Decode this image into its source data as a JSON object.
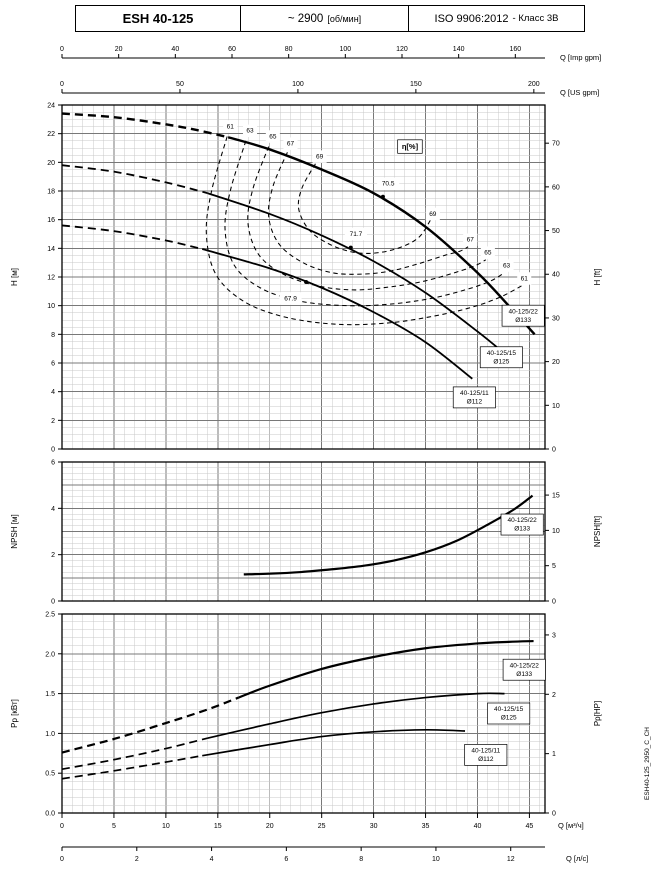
{
  "header": {
    "model": "ESH 40-125",
    "speed_value": "~ 2900",
    "speed_unit": "[об/мин]",
    "standard_value": "ISO 9906:2012",
    "standard_note": "- Класс 3В"
  },
  "side_code": "ESH40-125_2950_C_CH",
  "flow_axes": {
    "qmax_m3h": 46.5,
    "top": [
      {
        "label": "Q [Imp gpm]",
        "factor": 0.272766,
        "ticks": [
          0,
          20,
          40,
          60,
          80,
          100,
          120,
          140,
          160
        ]
      },
      {
        "label": "Q [US gpm]",
        "factor": 0.227125,
        "ticks": [
          0,
          50,
          100,
          150,
          200
        ]
      }
    ],
    "bottom": [
      {
        "label": "Q [м³/ч]",
        "factor": 1,
        "ticks": [
          0,
          5,
          10,
          15,
          20,
          25,
          30,
          35,
          40,
          45
        ]
      },
      {
        "label": "Q [л/с]",
        "factor": 3.6,
        "ticks": [
          0,
          2,
          4,
          6,
          8,
          10,
          12
        ]
      }
    ]
  },
  "chart_data": [
    {
      "id": "head",
      "type": "line",
      "ylabel_left": "H [м]",
      "ylabel_right": "H [ft]",
      "ylim": [
        0,
        24
      ],
      "grid": {
        "major": 2,
        "minor": 0.5
      },
      "yticks_left": [
        0,
        2,
        4,
        6,
        8,
        10,
        12,
        14,
        16,
        18,
        20,
        22,
        24
      ],
      "yticks_right": {
        "values": [
          0,
          10,
          20,
          30,
          40,
          50,
          60,
          70
        ],
        "factor": 0.3048
      },
      "series": [
        {
          "name": "40-125/22 Ø133",
          "width": 2.4,
          "dash_until": 16,
          "points": [
            [
              0,
              23.4
            ],
            [
              5,
              23.15
            ],
            [
              10,
              22.65
            ],
            [
              13,
              22.25
            ],
            [
              16,
              21.75
            ],
            [
              20,
              20.9
            ],
            [
              25,
              19.5
            ],
            [
              30,
              17.85
            ],
            [
              35,
              15.5
            ],
            [
              40,
              12.3
            ],
            [
              43,
              10.0
            ],
            [
              45.5,
              8.0
            ]
          ]
        },
        {
          "name": "40-125/15 Ø125",
          "width": 1.8,
          "dash_until": 14,
          "points": [
            [
              0,
              19.8
            ],
            [
              5,
              19.35
            ],
            [
              10,
              18.6
            ],
            [
              14,
              17.85
            ],
            [
              20,
              16.4
            ],
            [
              25,
              14.9
            ],
            [
              30,
              13.1
            ],
            [
              35,
              10.9
            ],
            [
              40,
              8.2
            ],
            [
              43.2,
              6.3
            ]
          ]
        },
        {
          "name": "40-125/11 Ø112",
          "width": 1.8,
          "dash_until": 13.5,
          "points": [
            [
              0,
              15.6
            ],
            [
              5,
              15.2
            ],
            [
              10,
              14.55
            ],
            [
              13.5,
              13.95
            ],
            [
              20,
              12.6
            ],
            [
              25,
              11.25
            ],
            [
              30,
              9.55
            ],
            [
              35,
              7.45
            ],
            [
              39.5,
              4.9
            ]
          ]
        }
      ],
      "contours": [
        {
          "value": "61",
          "left_label": [
            16.2,
            22.5
          ],
          "right_label": [
            44.5,
            11.9
          ],
          "points": [
            [
              15.9,
              21.8
            ],
            [
              14.4,
              18.0
            ],
            [
              13.9,
              15.0
            ],
            [
              14.8,
              12.2
            ],
            [
              17.5,
              10.3
            ],
            [
              21.5,
              9.2
            ],
            [
              26.5,
              8.7
            ],
            [
              31.5,
              8.8
            ],
            [
              36,
              9.3
            ],
            [
              39.5,
              9.9
            ],
            [
              42.2,
              10.6
            ],
            [
              44.3,
              11.4
            ]
          ]
        },
        {
          "value": "63",
          "left_label": [
            18.1,
            22.2
          ],
          "right_label": [
            42.8,
            12.8
          ],
          "points": [
            [
              17.7,
              21.5
            ],
            [
              16.2,
              18.0
            ],
            [
              15.7,
              15.3
            ],
            [
              16.6,
              12.8
            ],
            [
              19.2,
              11.2
            ],
            [
              23,
              10.3
            ],
            [
              27.5,
              10.0
            ],
            [
              31.5,
              10.1
            ],
            [
              35.5,
              10.5
            ],
            [
              38.8,
              11.1
            ],
            [
              41.2,
              11.7
            ],
            [
              42.6,
              12.3
            ]
          ]
        },
        {
          "value": "65",
          "left_label": [
            20.3,
            21.8
          ],
          "right_label": [
            41.0,
            13.7
          ],
          "points": [
            [
              19.9,
              21.1
            ],
            [
              18.4,
              18.2
            ],
            [
              17.9,
              15.8
            ],
            [
              18.9,
              13.6
            ],
            [
              21.3,
              12.2
            ],
            [
              24.5,
              11.4
            ],
            [
              28,
              11.1
            ],
            [
              31.5,
              11.3
            ],
            [
              34.8,
              11.7
            ],
            [
              37.8,
              12.3
            ],
            [
              39.8,
              12.8
            ],
            [
              40.8,
              13.2
            ]
          ]
        },
        {
          "value": "67",
          "left_label": [
            22.0,
            21.3
          ],
          "right_label": [
            39.3,
            14.6
          ],
          "points": [
            [
              21.7,
              20.7
            ],
            [
              20.3,
              18.3
            ],
            [
              19.9,
              16.2
            ],
            [
              20.9,
              14.3
            ],
            [
              23.2,
              13.0
            ],
            [
              26,
              12.3
            ],
            [
              28.8,
              12.2
            ],
            [
              31.5,
              12.4
            ],
            [
              34.2,
              12.9
            ],
            [
              36.8,
              13.5
            ],
            [
              38.3,
              13.8
            ],
            [
              39.1,
              14.1
            ]
          ]
        },
        {
          "value": "69",
          "left_label": [
            24.8,
            20.4
          ],
          "right_label": [
            35.7,
            16.4
          ],
          "points": [
            [
              24.4,
              19.9
            ],
            [
              23.1,
              18.2
            ],
            [
              22.8,
              16.7
            ],
            [
              23.9,
              15.2
            ],
            [
              26,
              14.2
            ],
            [
              28.3,
              13.7
            ],
            [
              30.5,
              13.7
            ],
            [
              32.7,
              14.1
            ],
            [
              34.4,
              14.8
            ],
            [
              35.5,
              16.0
            ]
          ]
        }
      ],
      "bep": [
        {
          "value": "70.5",
          "dot": [
            30.9,
            17.6
          ],
          "label": [
            31.4,
            18.5
          ]
        },
        {
          "value": "71.7",
          "dot": [
            27.8,
            14.05
          ],
          "label": [
            28.3,
            15.0
          ]
        },
        {
          "value": "67.9",
          "dot": [
            23.5,
            11.65
          ],
          "label": [
            22.0,
            10.5
          ]
        }
      ],
      "eta_label": {
        "text": "η[%]",
        "pos": [
          33.5,
          21.1
        ]
      },
      "series_labels": [
        {
          "lines": [
            "40-125/22",
            "Ø133"
          ],
          "pos": [
            44.4,
            9.3
          ]
        },
        {
          "lines": [
            "40-125/15",
            "Ø125"
          ],
          "pos": [
            42.3,
            6.4
          ]
        },
        {
          "lines": [
            "40-125/11",
            "Ø112"
          ],
          "pos": [
            39.7,
            3.6
          ]
        }
      ]
    },
    {
      "id": "npsh",
      "type": "line",
      "ylabel_left": "NPSH [м]",
      "ylabel_right": "NPSH[ft]",
      "ylim": [
        0,
        6
      ],
      "grid": {
        "major": 1,
        "minor": 0.25
      },
      "yticks_left": [
        0,
        2,
        4,
        6
      ],
      "yticks_right": {
        "values": [
          0,
          5,
          10,
          15
        ],
        "factor": 0.3048
      },
      "series": [
        {
          "name": "40-125/22 Ø133",
          "width": 2.2,
          "points": [
            [
              17.5,
              1.15
            ],
            [
              20,
              1.18
            ],
            [
              23,
              1.25
            ],
            [
              26,
              1.37
            ],
            [
              29,
              1.52
            ],
            [
              32,
              1.75
            ],
            [
              35,
              2.1
            ],
            [
              38,
              2.6
            ],
            [
              41,
              3.3
            ],
            [
              43.5,
              3.95
            ],
            [
              45.3,
              4.55
            ]
          ]
        }
      ],
      "contours": [],
      "bep": [],
      "series_labels": [
        {
          "lines": [
            "40-125/22",
            "Ø133"
          ],
          "pos": [
            44.3,
            3.3
          ]
        }
      ]
    },
    {
      "id": "power",
      "type": "line",
      "ylabel_left": "Pp [кВт]",
      "ylabel_right": "Pp[HP]",
      "ylim": [
        0,
        2.5
      ],
      "grid": {
        "major": 0.5,
        "minor": 0.1
      },
      "yticks_left": [
        "0.0",
        "0.5",
        "1.0",
        "1.5",
        "2.0",
        "2.5"
      ],
      "yticks_right": {
        "values": [
          0,
          1,
          2,
          3
        ],
        "factor": 0.7457
      },
      "series": [
        {
          "name": "40-125/22 Ø133",
          "width": 2.2,
          "dash_until": 17,
          "points": [
            [
              0,
              0.76
            ],
            [
              5,
              0.93
            ],
            [
              10,
              1.13
            ],
            [
              14,
              1.3
            ],
            [
              17,
              1.45
            ],
            [
              20,
              1.6
            ],
            [
              25,
              1.81
            ],
            [
              30,
              1.96
            ],
            [
              35,
              2.07
            ],
            [
              40,
              2.13
            ],
            [
              43,
              2.15
            ],
            [
              45.4,
              2.16
            ]
          ]
        },
        {
          "name": "40-125/15 Ø125",
          "width": 1.7,
          "dash_until": 14,
          "points": [
            [
              0,
              0.55
            ],
            [
              5,
              0.67
            ],
            [
              10,
              0.81
            ],
            [
              14,
              0.94
            ],
            [
              20,
              1.12
            ],
            [
              25,
              1.26
            ],
            [
              30,
              1.37
            ],
            [
              35,
              1.45
            ],
            [
              40,
              1.5
            ],
            [
              42.6,
              1.5
            ]
          ]
        },
        {
          "name": "40-125/11 Ø112",
          "width": 1.7,
          "dash_until": 13.5,
          "points": [
            [
              0,
              0.43
            ],
            [
              5,
              0.53
            ],
            [
              10,
              0.64
            ],
            [
              13.5,
              0.72
            ],
            [
              20,
              0.86
            ],
            [
              25,
              0.96
            ],
            [
              30,
              1.02
            ],
            [
              35,
              1.045
            ],
            [
              38.8,
              1.03
            ]
          ]
        }
      ],
      "contours": [],
      "bep": [],
      "series_labels": [
        {
          "lines": [
            "40-125/22",
            "Ø133"
          ],
          "pos": [
            44.5,
            1.8
          ]
        },
        {
          "lines": [
            "40-125/15",
            "Ø125"
          ],
          "pos": [
            43.0,
            1.25
          ]
        },
        {
          "lines": [
            "40-125/11",
            "Ø112"
          ],
          "pos": [
            40.8,
            0.73
          ]
        }
      ]
    }
  ]
}
